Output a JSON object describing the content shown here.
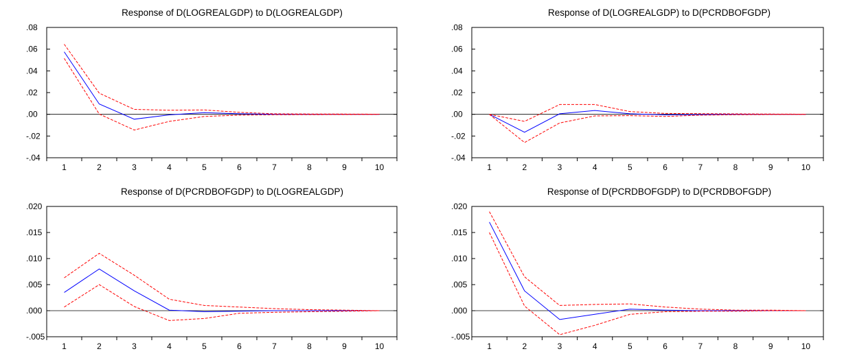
{
  "chart_data": [
    {
      "type": "line",
      "title": "Response of D(LOGREALGDP) to D(LOGREALGDP)",
      "categories": [
        "1",
        "2",
        "3",
        "4",
        "5",
        "6",
        "7",
        "8",
        "9",
        "10"
      ],
      "ylim": [
        -0.04,
        0.08
      ],
      "yticks": [
        ".08",
        ".06",
        ".04",
        ".02",
        ".00",
        "-.02",
        "-.04"
      ],
      "ytick_values": [
        0.08,
        0.06,
        0.04,
        0.02,
        0.0,
        -0.02,
        -0.04
      ],
      "grid": false,
      "series": [
        {
          "values": [
            0.0575,
            0.0095,
            -0.0045,
            -0.0005,
            0.0015,
            0.0005,
            0.0,
            0.0,
            0.0,
            0.0
          ],
          "color": "#0000ff",
          "dash": false
        },
        {
          "values": [
            0.0645,
            0.0195,
            0.0045,
            0.0038,
            0.004,
            0.0018,
            0.0005,
            0.0003,
            0.0002,
            0.0001
          ],
          "color": "#ff0000",
          "dash": true
        },
        {
          "values": [
            0.0515,
            0.0002,
            -0.0145,
            -0.0065,
            -0.002,
            -0.0008,
            -0.0004,
            -0.0003,
            -0.0002,
            -0.0001
          ],
          "color": "#ff0000",
          "dash": true
        }
      ]
    },
    {
      "type": "line",
      "title": "Response of D(LOGREALGDP) to D(PCRDBOFGDP)",
      "categories": [
        "1",
        "2",
        "3",
        "4",
        "5",
        "6",
        "7",
        "8",
        "9",
        "10"
      ],
      "ylim": [
        -0.04,
        0.08
      ],
      "yticks": [
        ".08",
        ".06",
        ".04",
        ".02",
        ".00",
        "-.02",
        "-.04"
      ],
      "ytick_values": [
        0.08,
        0.06,
        0.04,
        0.02,
        0.0,
        -0.02,
        -0.04
      ],
      "grid": false,
      "series": [
        {
          "values": [
            0.0,
            -0.0165,
            0.0005,
            0.0035,
            0.0005,
            -0.0005,
            -0.0003,
            0.0,
            0.0,
            0.0
          ],
          "color": "#0000ff",
          "dash": false
        },
        {
          "values": [
            0.0,
            -0.0065,
            0.009,
            0.009,
            0.0025,
            0.0008,
            0.0006,
            0.0004,
            0.0002,
            0.0001
          ],
          "color": "#ff0000",
          "dash": true
        },
        {
          "values": [
            0.0,
            -0.026,
            -0.008,
            -0.0015,
            -0.0012,
            -0.002,
            -0.0008,
            -0.0004,
            -0.0002,
            -0.0001
          ],
          "color": "#ff0000",
          "dash": true
        }
      ]
    },
    {
      "type": "line",
      "title": "Response of D(PCRDBOFGDP) to D(LOGREALGDP)",
      "categories": [
        "1",
        "2",
        "3",
        "4",
        "5",
        "6",
        "7",
        "8",
        "9",
        "10"
      ],
      "ylim": [
        -0.005,
        0.02
      ],
      "yticks": [
        ".020",
        ".015",
        ".010",
        ".005",
        ".000",
        "-.005"
      ],
      "ytick_values": [
        0.02,
        0.015,
        0.01,
        0.005,
        0.0,
        -0.005
      ],
      "grid": false,
      "series": [
        {
          "values": [
            0.0035,
            0.008,
            0.0038,
            0.0001,
            -0.0002,
            -0.0001,
            0.0,
            0.0,
            0.0,
            0.0
          ],
          "color": "#0000ff",
          "dash": false
        },
        {
          "values": [
            0.0063,
            0.011,
            0.0068,
            0.0022,
            0.001,
            0.0007,
            0.0004,
            0.0002,
            0.0001,
            0.0
          ],
          "color": "#ff0000",
          "dash": true
        },
        {
          "values": [
            0.0007,
            0.005,
            0.0008,
            -0.0019,
            -0.0015,
            -0.0005,
            -0.0003,
            -0.0002,
            -0.0001,
            0.0
          ],
          "color": "#ff0000",
          "dash": true
        }
      ]
    },
    {
      "type": "line",
      "title": "Response of D(PCRDBOFGDP) to D(PCRDBOFGDP)",
      "categories": [
        "1",
        "2",
        "3",
        "4",
        "5",
        "6",
        "7",
        "8",
        "9",
        "10"
      ],
      "ylim": [
        -0.005,
        0.02
      ],
      "yticks": [
        ".020",
        ".015",
        ".010",
        ".005",
        ".000",
        "-.005"
      ],
      "ytick_values": [
        0.02,
        0.015,
        0.01,
        0.005,
        0.0,
        -0.005
      ],
      "grid": false,
      "series": [
        {
          "values": [
            0.017,
            0.0038,
            -0.0017,
            -0.0007,
            0.0003,
            0.0001,
            0.0,
            0.0,
            0.0,
            0.0
          ],
          "color": "#0000ff",
          "dash": false
        },
        {
          "values": [
            0.019,
            0.0065,
            0.001,
            0.0012,
            0.0013,
            0.0007,
            0.0003,
            0.0001,
            0.0001,
            0.0
          ],
          "color": "#ff0000",
          "dash": true
        },
        {
          "values": [
            0.015,
            0.0009,
            -0.0046,
            -0.0028,
            -0.0007,
            -0.0002,
            -0.0001,
            -0.0001,
            0.0,
            0.0
          ],
          "color": "#ff0000",
          "dash": true
        }
      ]
    }
  ]
}
